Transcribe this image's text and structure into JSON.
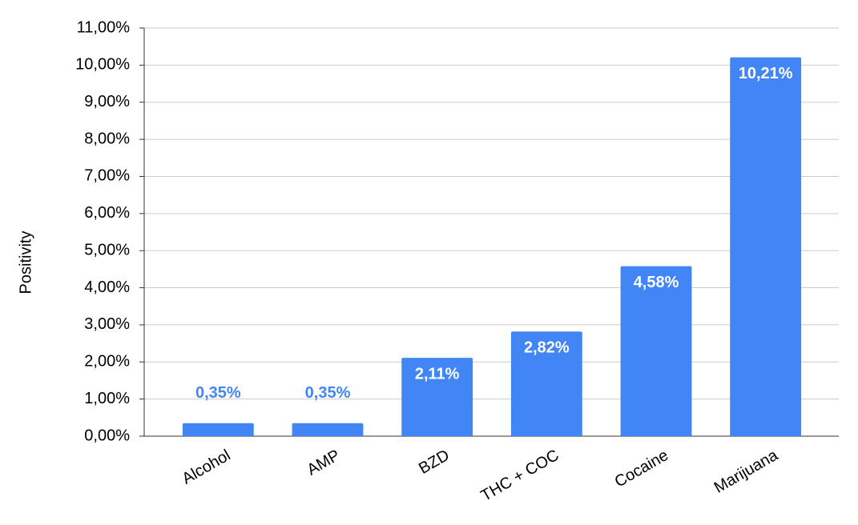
{
  "chart_data": {
    "type": "bar",
    "y_label": "Positivity",
    "categories": [
      "Alcohol",
      "AMP",
      "BZD",
      "THC + COC",
      "Cocaine",
      "Marijuana"
    ],
    "values": [
      0.35,
      0.35,
      2.11,
      2.82,
      4.58,
      10.21
    ],
    "value_labels": [
      "0,35%",
      "0,35%",
      "2,11%",
      "2,82%",
      "4,58%",
      "10,21%"
    ],
    "color": "#4285f4",
    "ylim": [
      0,
      11
    ],
    "yticks": [
      {
        "value": 0,
        "label": "0,00%"
      },
      {
        "value": 1,
        "label": "1,00%"
      },
      {
        "value": 2,
        "label": "2,00%"
      },
      {
        "value": 3,
        "label": "3,00%"
      },
      {
        "value": 4,
        "label": "4,00%"
      },
      {
        "value": 5,
        "label": "5,00%"
      },
      {
        "value": 6,
        "label": "6,00%"
      },
      {
        "value": 7,
        "label": "7,00%"
      },
      {
        "value": 8,
        "label": "8,00%"
      },
      {
        "value": 9,
        "label": "9,00%"
      },
      {
        "value": 10,
        "label": "10,00%"
      },
      {
        "value": 11,
        "label": "11,00%"
      }
    ],
    "grid": true
  }
}
